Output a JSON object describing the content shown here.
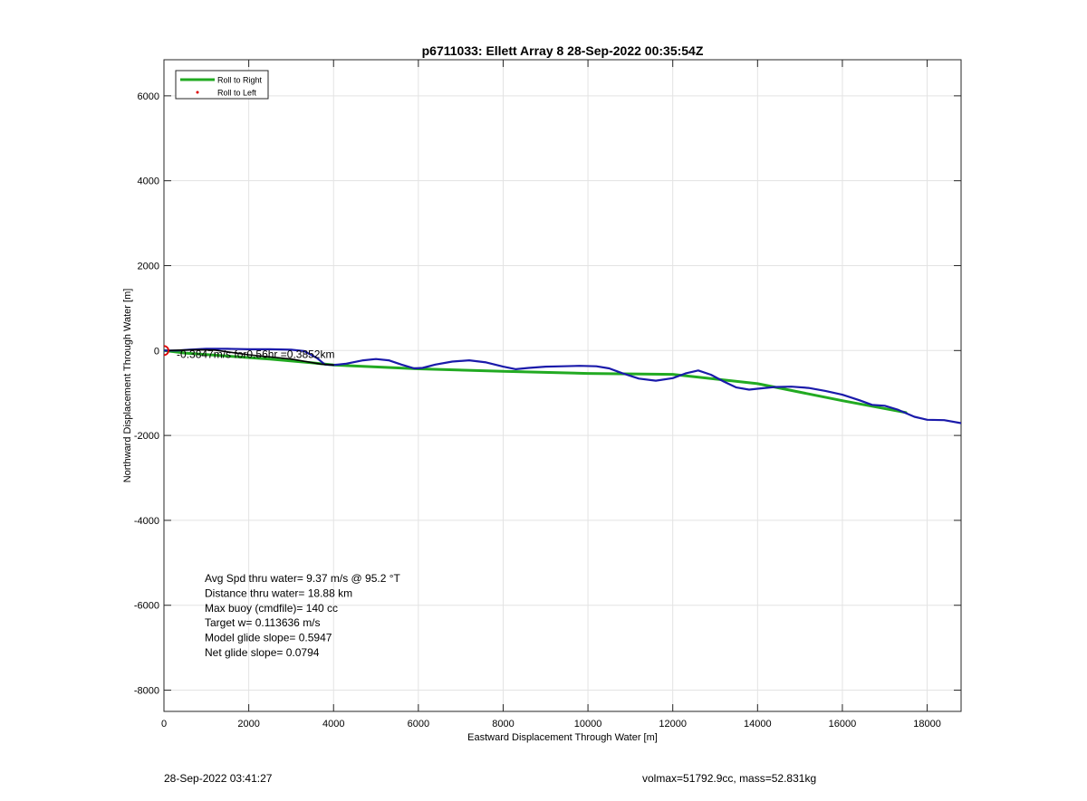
{
  "chart_data": {
    "type": "line",
    "title": "p6711033: Ellett Array 8 28-Sep-2022 00:35:54Z",
    "xlabel": "Eastward Displacement Through Water [m]",
    "ylabel": "Northward Displacement Through Water [m]",
    "xlim": [
      0,
      18800
    ],
    "ylim": [
      -8500,
      6850
    ],
    "xticks": [
      0,
      2000,
      4000,
      6000,
      8000,
      10000,
      12000,
      14000,
      16000,
      18000
    ],
    "yticks": [
      -8000,
      -6000,
      -4000,
      -2000,
      0,
      2000,
      4000,
      6000
    ],
    "grid": true,
    "legend_position": "top-left",
    "legend": [
      {
        "label": "Roll to Right",
        "color": "#22aa22",
        "style": "line"
      },
      {
        "label": "Roll to Left",
        "color": "#dd0000",
        "style": "dot"
      }
    ],
    "series": [
      {
        "name": "Roll to Right",
        "color": "#22aa22",
        "x": [
          0,
          500,
          1500,
          2500,
          3500,
          4000,
          6000,
          8000,
          10000,
          12000,
          14000,
          16000,
          17500
        ],
        "y": [
          0,
          -60,
          -130,
          -200,
          -290,
          -340,
          -430,
          -490,
          -540,
          -560,
          -780,
          -1180,
          -1460
        ]
      },
      {
        "name": "",
        "color": "#1a1aaa",
        "x": [
          0,
          300,
          600,
          1000,
          1500,
          2000,
          2500,
          3000,
          3300,
          3600,
          3800,
          4000,
          4300,
          4700,
          5000,
          5300,
          5600,
          5900,
          6100,
          6400,
          6800,
          7200,
          7600,
          8000,
          8300,
          8600,
          9000,
          9400,
          9800,
          10200,
          10500,
          10800,
          11200,
          11600,
          12000,
          12300,
          12600,
          12900,
          13200,
          13500,
          13800,
          14000,
          14400,
          14800,
          15200,
          15600,
          16000,
          16400,
          16700,
          17000,
          17300,
          17700,
          18000,
          18400,
          18800
        ],
        "y": [
          0,
          0,
          20,
          40,
          40,
          30,
          30,
          20,
          -10,
          -170,
          -330,
          -340,
          -310,
          -230,
          -200,
          -230,
          -330,
          -420,
          -410,
          -330,
          -260,
          -230,
          -280,
          -380,
          -440,
          -410,
          -380,
          -370,
          -360,
          -370,
          -420,
          -530,
          -660,
          -710,
          -650,
          -540,
          -470,
          -570,
          -730,
          -870,
          -920,
          -900,
          -860,
          -850,
          -880,
          -950,
          -1040,
          -1170,
          -1280,
          -1300,
          -1390,
          -1560,
          -1630,
          -1640,
          -1710
        ]
      },
      {
        "name": "",
        "color": "#000000",
        "x": [
          100,
          400,
          800,
          1200,
          2000,
          3000,
          3700,
          4000
        ],
        "y": [
          0,
          10,
          20,
          10,
          -100,
          -200,
          -320,
          -340
        ]
      }
    ],
    "start_marker": {
      "x": 0,
      "y": 0,
      "color": "#dd0000"
    },
    "annotation": "-0.3847m/s for0.56hr =0.3852km",
    "annotation_pos": {
      "x": 300,
      "y": -180
    },
    "stats": [
      "Avg Spd thru water=  9.37 m/s @  95.2 °T",
      "Distance thru water= 18.88 km",
      "Max buoy (cmdfile)= 140 cc",
      "Target w= 0.113636 m/s",
      "Model glide slope= 0.5947",
      "Net glide slope= 0.0794"
    ]
  },
  "footer": {
    "left": "28-Sep-2022 03:41:27",
    "right": "volmax=51792.9cc, mass=52.831kg"
  }
}
